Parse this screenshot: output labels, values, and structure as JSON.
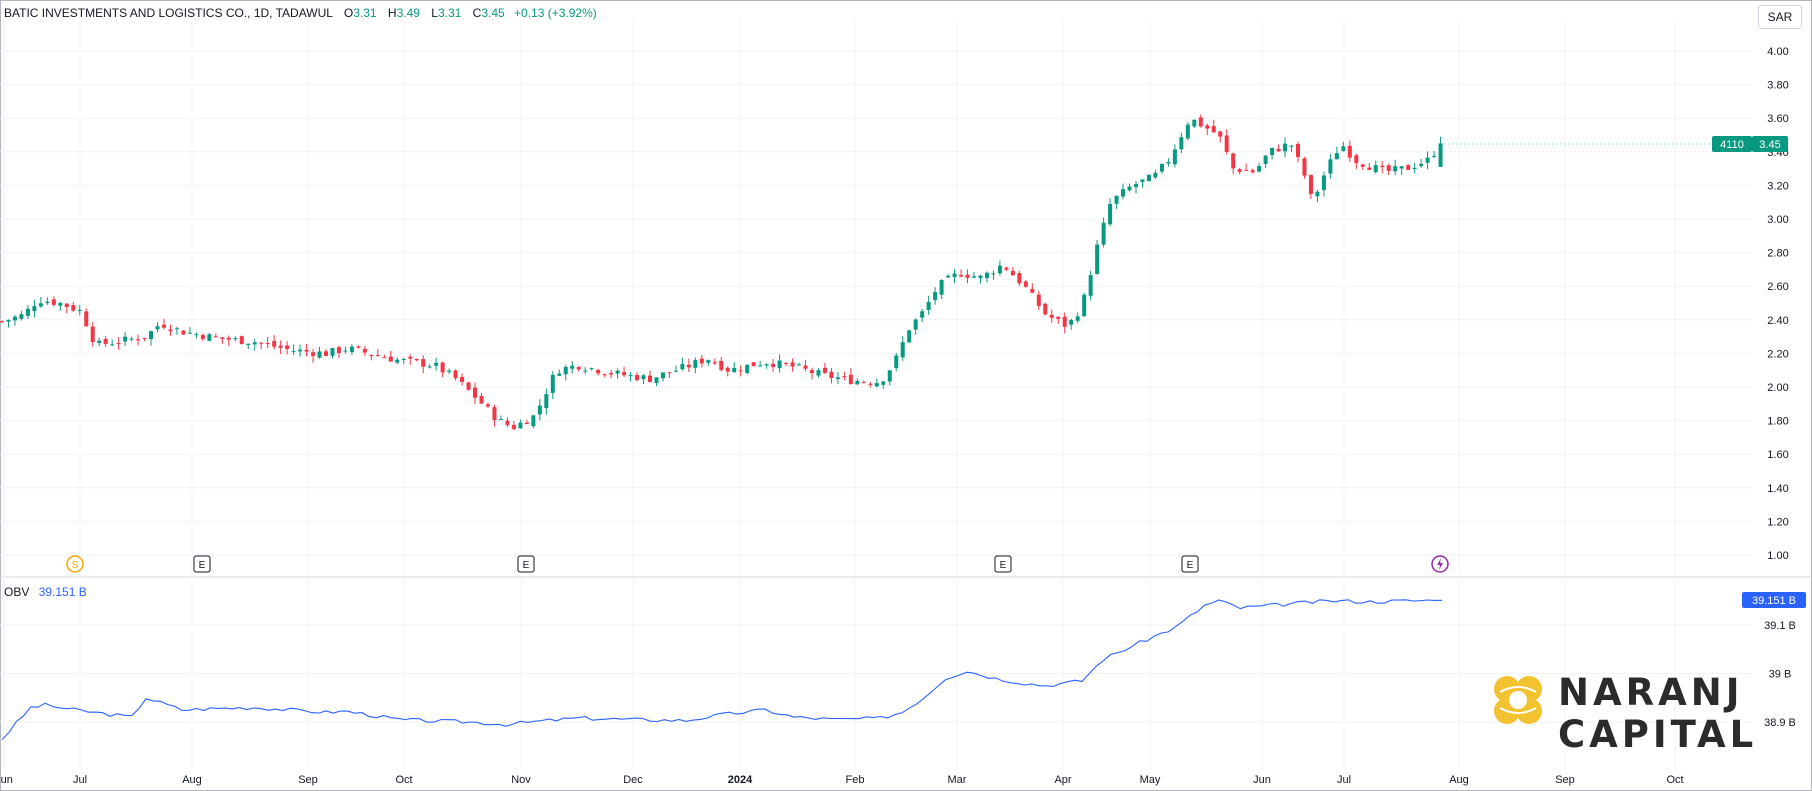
{
  "header": {
    "symbol": "BATIC INVESTMENTS AND LOGISTICS CO., 1D, TADAWUL",
    "open_label": "O",
    "open": "3.31",
    "high_label": "H",
    "high": "3.49",
    "low_label": "L",
    "low": "3.31",
    "close_label": "C",
    "close": "3.45",
    "change": "+0.13 (+3.92%)"
  },
  "currency": "SAR",
  "price_tag": {
    "ticker": "4110",
    "price": "3.45"
  },
  "obv": {
    "name": "OBV",
    "value": "39.151 B",
    "tag": "39.151 B"
  },
  "logo": {
    "line1": "NARANJ",
    "line2": "CAPITAL"
  },
  "colors": {
    "up": "#089981",
    "down": "#f23645",
    "obv": "#2962ff",
    "grid": "#f0f3fa"
  },
  "icons": [
    "split-icon",
    "earnings-icon",
    "earnings-icon",
    "earnings-icon",
    "earnings-icon",
    "dividend-lightning-icon"
  ],
  "chart_data": [
    {
      "type": "candlestick",
      "title": "BATIC INVESTMENTS AND LOGISTICS CO., 1D, TADAWUL",
      "ylabel": "SAR",
      "ylim": [
        0.95,
        4.1
      ],
      "y_ticks": [
        "4.00",
        "3.80",
        "3.60",
        "3.40",
        "3.20",
        "3.00",
        "2.80",
        "2.60",
        "2.40",
        "2.20",
        "2.00",
        "1.80",
        "1.60",
        "1.40",
        "1.20",
        "1.00"
      ],
      "x_ticks": [
        "Jun",
        "Jul",
        "Aug",
        "Sep",
        "Oct",
        "Nov",
        "Dec",
        "2024",
        "Feb",
        "Mar",
        "Apr",
        "May",
        "Jun",
        "Jul",
        "Aug",
        "Sep",
        "Oct"
      ],
      "close_path": [
        [
          0,
          2.39
        ],
        [
          6,
          2.43
        ],
        [
          10,
          2.52
        ],
        [
          16,
          2.5
        ],
        [
          22,
          2.45
        ],
        [
          26,
          2.25
        ],
        [
          32,
          2.27
        ],
        [
          40,
          2.3
        ],
        [
          44,
          2.38
        ],
        [
          50,
          2.33
        ],
        [
          60,
          2.29
        ],
        [
          70,
          2.27
        ],
        [
          80,
          2.22
        ],
        [
          90,
          2.2
        ],
        [
          96,
          2.23
        ],
        [
          110,
          2.16
        ],
        [
          120,
          2.13
        ],
        [
          126,
          2.05
        ],
        [
          132,
          1.93
        ],
        [
          138,
          1.8
        ],
        [
          142,
          1.76
        ],
        [
          148,
          1.83
        ],
        [
          154,
          2.1
        ],
        [
          160,
          2.13
        ],
        [
          170,
          2.08
        ],
        [
          180,
          2.05
        ],
        [
          190,
          2.12
        ],
        [
          196,
          2.17
        ],
        [
          202,
          2.1
        ],
        [
          212,
          2.15
        ],
        [
          220,
          2.12
        ],
        [
          228,
          2.07
        ],
        [
          236,
          2.04
        ],
        [
          244,
          2.03
        ],
        [
          248,
          2.15
        ],
        [
          252,
          2.35
        ],
        [
          256,
          2.45
        ],
        [
          260,
          2.6
        ],
        [
          266,
          2.68
        ],
        [
          272,
          2.65
        ],
        [
          278,
          2.73
        ],
        [
          284,
          2.6
        ],
        [
          290,
          2.43
        ],
        [
          296,
          2.36
        ],
        [
          300,
          2.48
        ],
        [
          304,
          2.82
        ],
        [
          308,
          3.1
        ],
        [
          314,
          3.2
        ],
        [
          320,
          3.25
        ],
        [
          324,
          3.35
        ],
        [
          330,
          3.6
        ],
        [
          334,
          3.55
        ],
        [
          338,
          3.5
        ],
        [
          342,
          3.3
        ],
        [
          348,
          3.28
        ],
        [
          352,
          3.4
        ],
        [
          358,
          3.45
        ],
        [
          362,
          3.25
        ],
        [
          364,
          3.1
        ],
        [
          368,
          3.3
        ],
        [
          372,
          3.45
        ],
        [
          376,
          3.35
        ],
        [
          384,
          3.28
        ],
        [
          390,
          3.3
        ],
        [
          396,
          3.35
        ],
        [
          400,
          3.45
        ]
      ],
      "last": {
        "open": 3.31,
        "high": 3.49,
        "low": 3.31,
        "close": 3.45
      }
    },
    {
      "type": "line",
      "title": "OBV",
      "ylim": [
        38.86,
        39.2
      ],
      "y_ticks": [
        "39.1 B",
        "39 B",
        "38.9 B"
      ],
      "series": [
        {
          "name": "OBV",
          "points": [
            [
              0,
              38.865
            ],
            [
              8,
              38.93
            ],
            [
              12,
              38.935
            ],
            [
              20,
              38.925
            ],
            [
              36,
              38.91
            ],
            [
              40,
              38.95
            ],
            [
              50,
              38.925
            ],
            [
              60,
              38.928
            ],
            [
              70,
              38.93
            ],
            [
              80,
              38.925
            ],
            [
              90,
              38.92
            ],
            [
              96,
              38.922
            ],
            [
              110,
              38.905
            ],
            [
              120,
              38.902
            ],
            [
              130,
              38.9
            ],
            [
              140,
              38.895
            ],
            [
              150,
              38.902
            ],
            [
              160,
              38.908
            ],
            [
              175,
              38.905
            ],
            [
              190,
              38.903
            ],
            [
              200,
              38.915
            ],
            [
              212,
              38.925
            ],
            [
              220,
              38.91
            ],
            [
              232,
              38.905
            ],
            [
              244,
              38.908
            ],
            [
              250,
              38.92
            ],
            [
              256,
              38.95
            ],
            [
              262,
              38.99
            ],
            [
              268,
              39.005
            ],
            [
              276,
              38.99
            ],
            [
              284,
              38.98
            ],
            [
              290,
              38.975
            ],
            [
              300,
              38.985
            ],
            [
              306,
              39.03
            ],
            [
              312,
              39.05
            ],
            [
              318,
              39.07
            ],
            [
              326,
              39.095
            ],
            [
              334,
              39.14
            ],
            [
              338,
              39.15
            ],
            [
              344,
              39.135
            ],
            [
              352,
              39.14
            ],
            [
              360,
              39.145
            ],
            [
              370,
              39.15
            ],
            [
              380,
              39.148
            ],
            [
              390,
              39.15
            ],
            [
              400,
              39.151
            ]
          ]
        }
      ]
    }
  ]
}
